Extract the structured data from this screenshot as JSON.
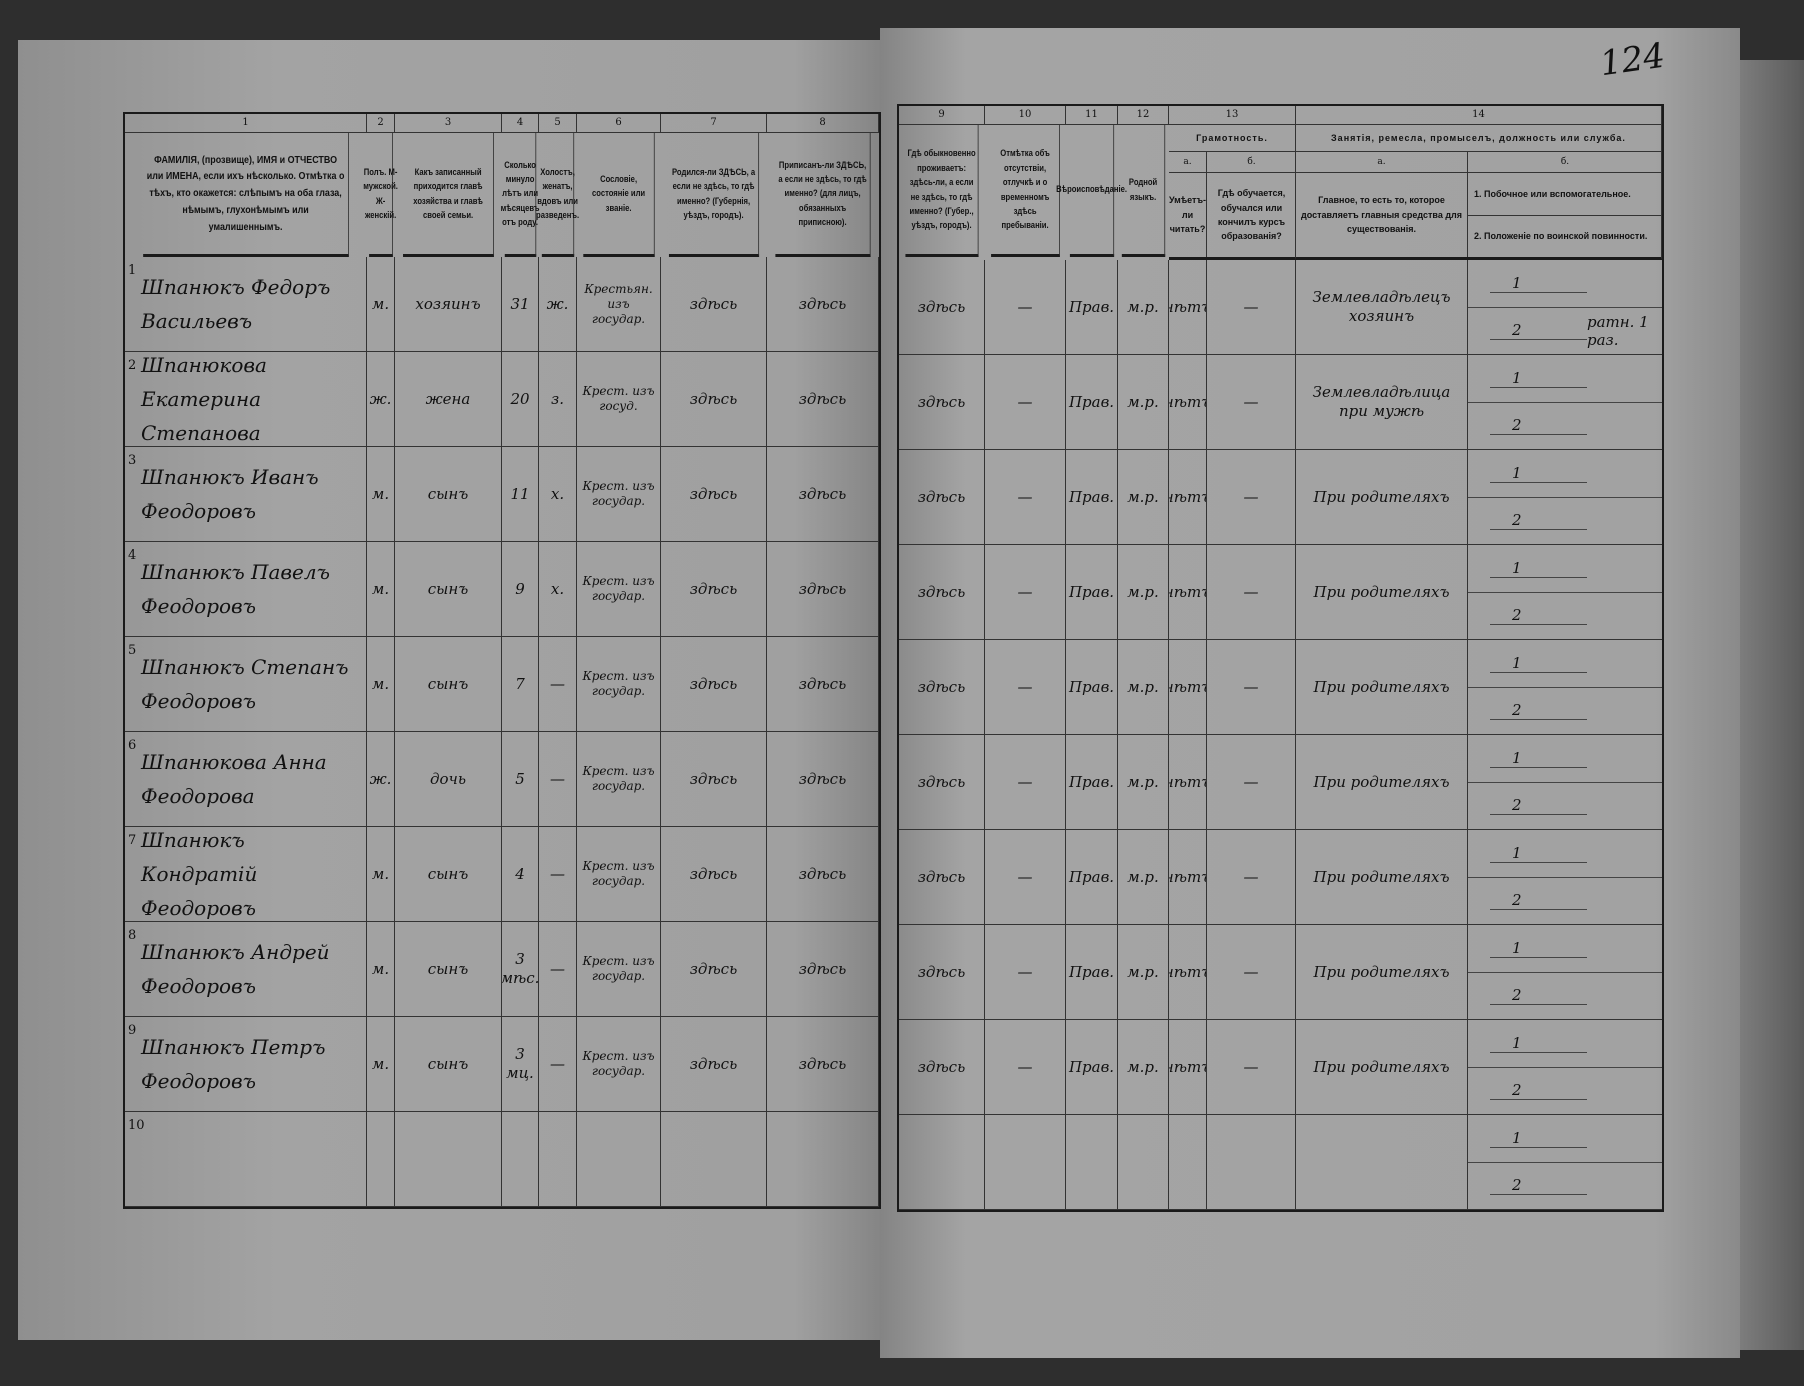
{
  "page_number": "124",
  "left_headers": [
    {
      "num": "1",
      "text": "ФАМИЛІЯ, (прозвище), ИМЯ и ОТЧЕСТВО или ИМЕНА, если ихъ нѣсколько. Отмѣтка о тѣхъ, кто окажется: слѣпымъ на оба глаза, нѣмымъ, глухонѣмымъ или умалишеннымъ."
    },
    {
      "num": "2",
      "text": "Полъ. М-мужской. Ж-женскій."
    },
    {
      "num": "3",
      "text": "Какъ записанный приходится главѣ хозяйства и главѣ своей семьи."
    },
    {
      "num": "4",
      "text": "Сколько минуло лѣтъ или мѣсяцевъ отъ роду."
    },
    {
      "num": "5",
      "text": "Холостъ, женатъ, вдовъ или разведенъ."
    },
    {
      "num": "6",
      "text": "Сословіе, состояніе или званіе."
    },
    {
      "num": "7",
      "text": "Родился-ли ЗДѢСЬ, а если не здѣсь, то гдѣ именно? (Губернія, уѣздъ, городъ)."
    },
    {
      "num": "8",
      "text": "Приписанъ-ли ЗДѢСЬ, а если не здѣсь, то гдѣ именно? (для лицъ, обязанныхъ приписною)."
    }
  ],
  "right_headers": [
    {
      "num": "9",
      "text": "Гдѣ обыкновенно проживаетъ: здѣсь-ли, а если не здѣсь, то гдѣ именно? (Губер., уѣздъ, городъ)."
    },
    {
      "num": "10",
      "text": "Отмѣтка объ отсутствіи, отлучкѣ и о временномъ здѣсь пребываніи."
    },
    {
      "num": "11",
      "text": "Вѣроисповѣданіе."
    },
    {
      "num": "12",
      "text": "Родной языкъ."
    }
  ],
  "literacy": {
    "num": "13",
    "title": "Грамотность.",
    "a_letter": "а.",
    "a_text": "Умѣетъ-ли читать?",
    "b_letter": "б.",
    "b_text": "Гдѣ обучается, обучался или кончилъ курсъ образованія?"
  },
  "occupation": {
    "num": "14",
    "title": "Занятія, ремесла, промыселъ, должность или служба.",
    "a_letter": "а.",
    "a_text": "Главное, то есть то, которое доставляетъ главныя средства для существованія.",
    "b_letter": "б.",
    "b_1": "1. Побочное или вспомогательное.",
    "b_2": "2. Положеніе по воинской повинности."
  },
  "rows": [
    {
      "n": "1",
      "name": "Шпанюкъ Федоръ Васильевъ",
      "sex": "м.",
      "relation": "хозяинъ",
      "age": "31",
      "marital": "ж.",
      "estate": "Крестьян. изъ государ.",
      "born": "здѣсь",
      "registered": "здѣсь",
      "residence": "здѣсь",
      "absence": "—",
      "religion": "Прав.",
      "language": "м.р.",
      "reads": "нѣтъ",
      "school": "—",
      "occupation": "Землевладѣлецъ хозяинъ",
      "secondary": "",
      "military": "ратн. 1 раз."
    },
    {
      "n": "2",
      "name": "Шпанюкова Екатерина Степанова",
      "sex": "ж.",
      "relation": "жена",
      "age": "20",
      "marital": "з.",
      "estate": "Крест. изъ госуд.",
      "born": "здѣсь",
      "registered": "здѣсь",
      "residence": "здѣсь",
      "absence": "—",
      "religion": "Прав.",
      "language": "м.р.",
      "reads": "нѣтъ",
      "school": "—",
      "occupation": "Землевладѣлица при мужѣ",
      "secondary": "",
      "military": ""
    },
    {
      "n": "3",
      "name": "Шпанюкъ Иванъ Феодоровъ",
      "sex": "м.",
      "relation": "сынъ",
      "age": "11",
      "marital": "х.",
      "estate": "Крест. изъ государ.",
      "born": "здѣсь",
      "registered": "здѣсь",
      "residence": "здѣсь",
      "absence": "—",
      "religion": "Прав.",
      "language": "м.р.",
      "reads": "нѣтъ",
      "school": "—",
      "occupation": "При родителяхъ",
      "secondary": "",
      "military": ""
    },
    {
      "n": "4",
      "name": "Шпанюкъ Павелъ Феодоровъ",
      "sex": "м.",
      "relation": "сынъ",
      "age": "9",
      "marital": "х.",
      "estate": "Крест. изъ государ.",
      "born": "здѣсь",
      "registered": "здѣсь",
      "residence": "здѣсь",
      "absence": "—",
      "religion": "Прав.",
      "language": "м.р.",
      "reads": "нѣтъ",
      "school": "—",
      "occupation": "При родителяхъ",
      "secondary": "",
      "military": ""
    },
    {
      "n": "5",
      "name": "Шпанюкъ Степанъ Феодоровъ",
      "sex": "м.",
      "relation": "сынъ",
      "age": "7",
      "marital": "—",
      "estate": "Крест. изъ государ.",
      "born": "здѣсь",
      "registered": "здѣсь",
      "residence": "здѣсь",
      "absence": "—",
      "religion": "Прав.",
      "language": "м.р.",
      "reads": "нѣтъ",
      "school": "—",
      "occupation": "При родителяхъ",
      "secondary": "",
      "military": ""
    },
    {
      "n": "6",
      "name": "Шпанюкова Анна Феодорова",
      "sex": "ж.",
      "relation": "дочь",
      "age": "5",
      "marital": "—",
      "estate": "Крест. изъ государ.",
      "born": "здѣсь",
      "registered": "здѣсь",
      "residence": "здѣсь",
      "absence": "—",
      "religion": "Прав.",
      "language": "м.р.",
      "reads": "нѣтъ",
      "school": "—",
      "occupation": "При родителяхъ",
      "secondary": "",
      "military": ""
    },
    {
      "n": "7",
      "name": "Шпанюкъ Кондратій Феодоровъ",
      "sex": "м.",
      "relation": "сынъ",
      "age": "4",
      "marital": "—",
      "estate": "Крест. изъ государ.",
      "born": "здѣсь",
      "registered": "здѣсь",
      "residence": "здѣсь",
      "absence": "—",
      "religion": "Прав.",
      "language": "м.р.",
      "reads": "нѣтъ",
      "school": "—",
      "occupation": "При родителяхъ",
      "secondary": "",
      "military": ""
    },
    {
      "n": "8",
      "name": "Шпанюкъ Андрей Феодоровъ",
      "sex": "м.",
      "relation": "сынъ",
      "age": "3 мѣс.",
      "marital": "—",
      "estate": "Крест. изъ государ.",
      "born": "здѣсь",
      "registered": "здѣсь",
      "residence": "здѣсь",
      "absence": "—",
      "religion": "Прав.",
      "language": "м.р.",
      "reads": "нѣтъ",
      "school": "—",
      "occupation": "При родителяхъ",
      "secondary": "",
      "military": ""
    },
    {
      "n": "9",
      "name": "Шпанюкъ Петръ Феодоровъ",
      "sex": "м.",
      "relation": "сынъ",
      "age": "3 мц.",
      "marital": "—",
      "estate": "Крест. изъ государ.",
      "born": "здѣсь",
      "registered": "здѣсь",
      "residence": "здѣсь",
      "absence": "—",
      "religion": "Прав.",
      "language": "м.р.",
      "reads": "нѣтъ",
      "school": "—",
      "occupation": "При родителяхъ",
      "secondary": "",
      "military": ""
    },
    {
      "n": "10",
      "name": "",
      "sex": "",
      "relation": "",
      "age": "",
      "marital": "",
      "estate": "",
      "born": "",
      "registered": "",
      "residence": "",
      "absence": "",
      "religion": "",
      "language": "",
      "reads": "",
      "school": "",
      "occupation": "",
      "secondary": "",
      "military": ""
    }
  ]
}
